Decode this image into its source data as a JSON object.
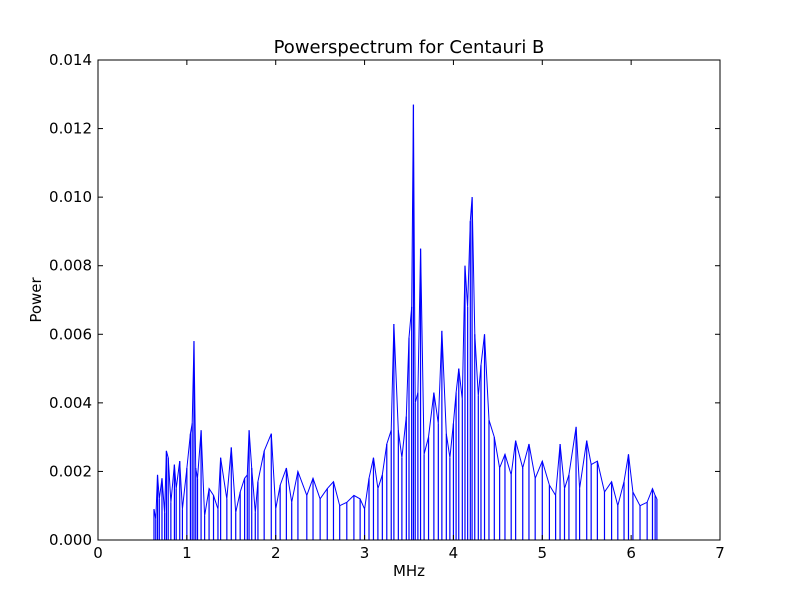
{
  "chart_data": {
    "type": "line",
    "title": "Powerspectrum for Centauri B",
    "xlabel": "MHz",
    "ylabel": "Power",
    "xlim": [
      0,
      7
    ],
    "ylim": [
      0,
      0.014
    ],
    "xticks": [
      0,
      1,
      2,
      3,
      4,
      5,
      6,
      7
    ],
    "xtick_labels": [
      "0",
      "1",
      "2",
      "3",
      "4",
      "5",
      "6",
      "7"
    ],
    "yticks": [
      0,
      0.002,
      0.004,
      0.006,
      0.008,
      0.01,
      0.012,
      0.014
    ],
    "ytick_labels": [
      "0.000",
      "0.002",
      "0.004",
      "0.006",
      "0.008",
      "0.010",
      "0.012",
      "0.014"
    ],
    "grid": false,
    "legend": "none",
    "series": [
      {
        "color": "#0000ff",
        "x": [
          0.63,
          0.65,
          0.67,
          0.69,
          0.72,
          0.75,
          0.77,
          0.79,
          0.82,
          0.86,
          0.88,
          0.92,
          0.95,
          1.0,
          1.04,
          1.06,
          1.08,
          1.1,
          1.12,
          1.16,
          1.2,
          1.25,
          1.3,
          1.35,
          1.38,
          1.45,
          1.5,
          1.55,
          1.6,
          1.65,
          1.68,
          1.7,
          1.73,
          1.77,
          1.8,
          1.87,
          1.95,
          2.0,
          2.05,
          2.12,
          2.18,
          2.25,
          2.35,
          2.42,
          2.5,
          2.58,
          2.65,
          2.72,
          2.8,
          2.88,
          2.95,
          3.0,
          3.05,
          3.1,
          3.15,
          3.2,
          3.25,
          3.3,
          3.33,
          3.38,
          3.42,
          3.47,
          3.5,
          3.53,
          3.55,
          3.57,
          3.6,
          3.63,
          3.67,
          3.72,
          3.78,
          3.83,
          3.87,
          3.92,
          3.96,
          4.0,
          4.03,
          4.06,
          4.1,
          4.13,
          4.16,
          4.19,
          4.21,
          4.24,
          4.28,
          4.31,
          4.35,
          4.4,
          4.46,
          4.52,
          4.58,
          4.65,
          4.7,
          4.78,
          4.85,
          4.92,
          5.0,
          5.08,
          5.15,
          5.2,
          5.25,
          5.3,
          5.38,
          5.42,
          5.5,
          5.55,
          5.62,
          5.7,
          5.78,
          5.85,
          5.92,
          5.97,
          6.02,
          6.1,
          6.18,
          6.24,
          6.27,
          6.29
        ],
        "y": [
          0.0009,
          0.0006,
          0.0019,
          0.0012,
          0.0018,
          0.0008,
          0.0026,
          0.0024,
          0.0011,
          0.0022,
          0.0015,
          0.0023,
          0.0009,
          0.0021,
          0.0031,
          0.0034,
          0.0058,
          0.0021,
          0.0018,
          0.0032,
          0.0007,
          0.0015,
          0.0013,
          0.0009,
          0.0024,
          0.0012,
          0.0027,
          0.0008,
          0.0014,
          0.0018,
          0.0019,
          0.0032,
          0.0021,
          0.0008,
          0.0017,
          0.0026,
          0.0031,
          0.0009,
          0.0016,
          0.0021,
          0.0011,
          0.002,
          0.0013,
          0.0018,
          0.0012,
          0.0015,
          0.0017,
          0.001,
          0.0011,
          0.0013,
          0.0012,
          0.0009,
          0.0018,
          0.0024,
          0.0015,
          0.0019,
          0.0028,
          0.0032,
          0.0063,
          0.0032,
          0.0024,
          0.0036,
          0.0059,
          0.0068,
          0.0127,
          0.004,
          0.0043,
          0.0085,
          0.0025,
          0.003,
          0.0043,
          0.0034,
          0.0061,
          0.0031,
          0.0024,
          0.0034,
          0.0043,
          0.005,
          0.0041,
          0.008,
          0.0068,
          0.0093,
          0.01,
          0.006,
          0.0042,
          0.0051,
          0.006,
          0.0035,
          0.003,
          0.0021,
          0.0025,
          0.0019,
          0.0029,
          0.0021,
          0.0028,
          0.0018,
          0.0023,
          0.0016,
          0.0013,
          0.0028,
          0.0015,
          0.0019,
          0.0033,
          0.0015,
          0.0029,
          0.0022,
          0.0023,
          0.0014,
          0.0017,
          0.001,
          0.0017,
          0.0025,
          0.0014,
          0.001,
          0.0011,
          0.0015,
          0.0013,
          0.0012
        ]
      }
    ]
  }
}
